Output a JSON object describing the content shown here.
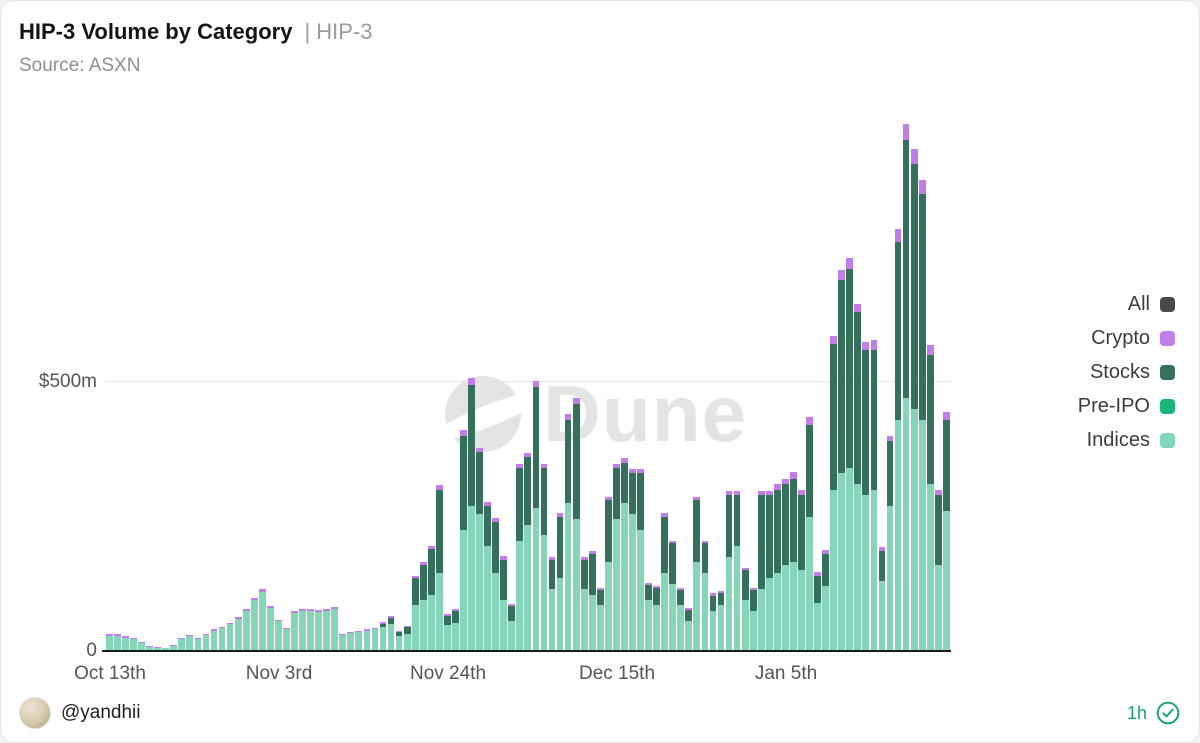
{
  "header": {
    "title": "HIP-3 Volume by Category",
    "subtitle": "| HIP-3",
    "source": "Source: ASXN"
  },
  "watermark": {
    "text": "Dune",
    "logo_icon": "dune-logo"
  },
  "legend": [
    {
      "label": "All",
      "color": "#4a4a4a"
    },
    {
      "label": "Crypto",
      "color": "#c17eea"
    },
    {
      "label": "Stocks",
      "color": "#35705c"
    },
    {
      "label": "Pre-IPO",
      "color": "#17b877"
    },
    {
      "label": "Indices",
      "color": "#85d6b6"
    }
  ],
  "footer": {
    "handle": "@yandhii",
    "timestamp": "1h",
    "badge_icon": "verified-check-seal-icon",
    "accent_green": "#15a36b"
  },
  "chart_data": {
    "type": "bar",
    "stacked": true,
    "title": "HIP-3 Volume by Category | HIP-3",
    "unit": "$m",
    "ylim": [
      0,
      1030
    ],
    "grid": "horizontal-500m-only",
    "legend_position": "right",
    "y_ticks": [
      {
        "label": "$500m",
        "value": 500
      },
      {
        "label": "0",
        "value": 0
      }
    ],
    "x_ticks": [
      {
        "label": "Oct 13th",
        "day_index": 0
      },
      {
        "label": "Nov 3rd",
        "day_index": 21
      },
      {
        "label": "Nov 24th",
        "day_index": 42
      },
      {
        "label": "Dec 15th",
        "day_index": 63
      },
      {
        "label": "Jan 5th",
        "day_index": 84
      }
    ],
    "dates": [
      "Oct 13",
      "Oct 14",
      "Oct 15",
      "Oct 16",
      "Oct 17",
      "Oct 18",
      "Oct 19",
      "Oct 20",
      "Oct 21",
      "Oct 22",
      "Oct 23",
      "Oct 24",
      "Oct 25",
      "Oct 26",
      "Oct 27",
      "Oct 28",
      "Oct 29",
      "Oct 30",
      "Oct 31",
      "Nov 1",
      "Nov 2",
      "Nov 3",
      "Nov 4",
      "Nov 5",
      "Nov 6",
      "Nov 7",
      "Nov 8",
      "Nov 9",
      "Nov 10",
      "Nov 11",
      "Nov 12",
      "Nov 13",
      "Nov 14",
      "Nov 15",
      "Nov 16",
      "Nov 17",
      "Nov 18",
      "Nov 19",
      "Nov 20",
      "Nov 21",
      "Nov 22",
      "Nov 23",
      "Nov 24",
      "Nov 25",
      "Nov 26",
      "Nov 27",
      "Nov 28",
      "Nov 29",
      "Nov 30",
      "Dec 1",
      "Dec 2",
      "Dec 3",
      "Dec 4",
      "Dec 5",
      "Dec 6",
      "Dec 7",
      "Dec 8",
      "Dec 9",
      "Dec 10",
      "Dec 11",
      "Dec 12",
      "Dec 13",
      "Dec 14",
      "Dec 15",
      "Dec 16",
      "Dec 17",
      "Dec 18",
      "Dec 19",
      "Dec 20",
      "Dec 21",
      "Dec 22",
      "Dec 23",
      "Dec 24",
      "Dec 25",
      "Dec 26",
      "Dec 27",
      "Dec 28",
      "Dec 29",
      "Dec 30",
      "Dec 31",
      "Jan 1",
      "Jan 2",
      "Jan 3",
      "Jan 4",
      "Jan 5",
      "Jan 6",
      "Jan 7",
      "Jan 8",
      "Jan 9",
      "Jan 10",
      "Jan 11",
      "Jan 12",
      "Jan 13",
      "Jan 14",
      "Jan 15",
      "Jan 16",
      "Jan 17",
      "Jan 18",
      "Jan 19",
      "Jan 20",
      "Jan 21",
      "Jan 22",
      "Jan 23",
      "Jan 24",
      "Jan 25"
    ],
    "series": [
      {
        "name": "Indices",
        "key": "indices",
        "color": "#85d6b6",
        "values": [
          28,
          28,
          25,
          22,
          14,
          8,
          6,
          5,
          10,
          22,
          28,
          22,
          30,
          38,
          42,
          50,
          60,
          75,
          95,
          110,
          80,
          55,
          40,
          70,
          75,
          75,
          72,
          75,
          78,
          30,
          34,
          36,
          38,
          40,
          45,
          50,
          28,
          32,
          85,
          95,
          105,
          145,
          48,
          52,
          225,
          270,
          255,
          195,
          145,
          95,
          55,
          205,
          235,
          265,
          215,
          115,
          135,
          275,
          245,
          115,
          105,
          85,
          165,
          245,
          275,
          255,
          225,
          95,
          85,
          145,
          125,
          85,
          55,
          165,
          145,
          75,
          85,
          175,
          195,
          95,
          75,
          115,
          135,
          145,
          160,
          165,
          150,
          250,
          90,
          120,
          300,
          330,
          340,
          310,
          290,
          300,
          130,
          270,
          430,
          470,
          450,
          430,
          310,
          160,
          260
        ]
      },
      {
        "name": "Stocks",
        "key": "stocks",
        "color": "#35705c",
        "values": [
          0,
          0,
          0,
          0,
          0,
          0,
          0,
          0,
          0,
          0,
          0,
          0,
          0,
          0,
          0,
          0,
          0,
          0,
          0,
          0,
          0,
          0,
          0,
          0,
          0,
          0,
          0,
          0,
          0,
          0,
          0,
          0,
          0,
          0,
          6,
          12,
          8,
          12,
          50,
          65,
          85,
          155,
          18,
          22,
          175,
          225,
          115,
          75,
          95,
          75,
          28,
          135,
          125,
          225,
          125,
          55,
          115,
          155,
          215,
          55,
          75,
          28,
          115,
          95,
          75,
          75,
          105,
          28,
          32,
          105,
          75,
          28,
          22,
          115,
          55,
          28,
          22,
          115,
          95,
          55,
          38,
          175,
          155,
          155,
          150,
          155,
          140,
          170,
          50,
          60,
          270,
          360,
          370,
          320,
          270,
          260,
          55,
          120,
          330,
          480,
          455,
          420,
          240,
          130,
          170
        ]
      },
      {
        "name": "Crypto",
        "key": "crypto",
        "color": "#c17eea",
        "values": [
          3,
          3,
          2,
          2,
          2,
          1,
          1,
          1,
          1,
          2,
          2,
          2,
          2,
          3,
          3,
          3,
          3,
          4,
          4,
          5,
          4,
          3,
          3,
          4,
          4,
          4,
          4,
          4,
          4,
          2,
          2,
          2,
          3,
          3,
          3,
          3,
          2,
          2,
          5,
          5,
          6,
          8,
          3,
          4,
          10,
          12,
          8,
          7,
          7,
          6,
          4,
          8,
          8,
          12,
          8,
          5,
          6,
          10,
          10,
          5,
          5,
          4,
          7,
          8,
          8,
          8,
          8,
          4,
          4,
          6,
          5,
          4,
          3,
          6,
          5,
          4,
          4,
          8,
          7,
          5,
          4,
          8,
          8,
          10,
          10,
          12,
          10,
          15,
          6,
          8,
          15,
          18,
          20,
          15,
          15,
          18,
          8,
          10,
          25,
          30,
          28,
          25,
          18,
          10,
          15
        ]
      }
    ],
    "legend_only_series": [
      {
        "name": "All",
        "color": "#4a4a4a"
      },
      {
        "name": "Pre-IPO",
        "color": "#17b877"
      }
    ]
  }
}
